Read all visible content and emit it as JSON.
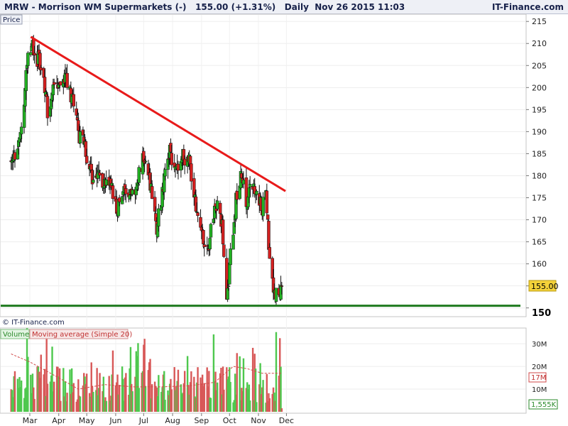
{
  "header": {
    "symbol": "MRW",
    "name": "Morrison WM Supermarkets (-)",
    "last_price": "155.00",
    "change": "(+1.31%)",
    "interval": "Daily",
    "datetime": "Nov 26 2015 11:03",
    "brand": "IT-Finance.com"
  },
  "price_panel": {
    "tab_label": "Price",
    "copyright": "© IT-Finance.com",
    "last_value_label": "155.00",
    "support_label": "150",
    "colors": {
      "up": "#22b022",
      "down": "#d42020",
      "trendline": "#e81a1a",
      "support": "#1e7a1e",
      "last_tag": "#f4d23a"
    }
  },
  "volume_panel": {
    "legend_volume": "Volume",
    "legend_ma": "Moving average (Simple 20)",
    "ma_value_label": "17M",
    "last_value_label": "1,555K",
    "y_ticks": [
      "10M",
      "20M",
      "30M"
    ],
    "y_tick_values": [
      10,
      20,
      30
    ]
  },
  "chart_data": {
    "type": "candlestick",
    "title": "",
    "x_month_labels": [
      "Mar",
      "Apr",
      "May",
      "Jun",
      "Jul",
      "Aug",
      "Sep",
      "Oct",
      "Nov",
      "Dec"
    ],
    "y_ticks": [
      150,
      155,
      160,
      165,
      170,
      175,
      180,
      185,
      190,
      195,
      200,
      205,
      210,
      215
    ],
    "ylim": [
      148.5,
      216
    ],
    "volume_ylim": [
      0,
      36
    ],
    "trendline": {
      "start": {
        "date": "2015-03-02",
        "price": 211.5
      },
      "end": {
        "date": "2015-11-30",
        "price": 176.5
      }
    },
    "support_level": 150.5,
    "series": [
      {
        "name": "Price",
        "anchors": [
          [
            "2015-02-09",
            183
          ],
          [
            "2015-02-16",
            185
          ],
          [
            "2015-02-23",
            196
          ],
          [
            "2015-02-26",
            206
          ],
          [
            "2015-03-02",
            210
          ],
          [
            "2015-03-06",
            208
          ],
          [
            "2015-03-13",
            205
          ],
          [
            "2015-03-20",
            195
          ],
          [
            "2015-03-27",
            200
          ],
          [
            "2015-04-02",
            201
          ],
          [
            "2015-04-09",
            202
          ],
          [
            "2015-04-16",
            197
          ],
          [
            "2015-04-22",
            190
          ],
          [
            "2015-04-29",
            186
          ],
          [
            "2015-05-06",
            180
          ],
          [
            "2015-05-13",
            180
          ],
          [
            "2015-05-20",
            178
          ],
          [
            "2015-05-27",
            177
          ],
          [
            "2015-06-03",
            172
          ],
          [
            "2015-06-10",
            178
          ],
          [
            "2015-06-17",
            177
          ],
          [
            "2015-06-24",
            178
          ],
          [
            "2015-07-01",
            185
          ],
          [
            "2015-07-08",
            178
          ],
          [
            "2015-07-15",
            168
          ],
          [
            "2015-07-22",
            178
          ],
          [
            "2015-07-29",
            185
          ],
          [
            "2015-08-05",
            182
          ],
          [
            "2015-08-12",
            184
          ],
          [
            "2015-08-19",
            183
          ],
          [
            "2015-08-26",
            173
          ],
          [
            "2015-09-02",
            166
          ],
          [
            "2015-09-09",
            165
          ],
          [
            "2015-09-16",
            175
          ],
          [
            "2015-09-23",
            168
          ],
          [
            "2015-09-28",
            151
          ],
          [
            "2015-10-02",
            163
          ],
          [
            "2015-10-09",
            176
          ],
          [
            "2015-10-14",
            180
          ],
          [
            "2015-10-19",
            174
          ],
          [
            "2015-10-26",
            178
          ],
          [
            "2015-11-02",
            174
          ],
          [
            "2015-11-05",
            172
          ],
          [
            "2015-11-09",
            177
          ],
          [
            "2015-11-13",
            160
          ],
          [
            "2015-11-18",
            153
          ],
          [
            "2015-11-23",
            154
          ],
          [
            "2015-11-26",
            155
          ]
        ]
      },
      {
        "name": "Volume",
        "ma_anchors": [
          [
            "2015-02-09",
            25.5
          ],
          [
            "2015-03-01",
            22
          ],
          [
            "2015-04-01",
            15
          ],
          [
            "2015-04-22",
            10
          ],
          [
            "2015-05-20",
            12
          ],
          [
            "2015-06-20",
            11
          ],
          [
            "2015-07-20",
            11
          ],
          [
            "2015-08-20",
            11.5
          ],
          [
            "2015-09-15",
            13
          ],
          [
            "2015-10-05",
            20
          ],
          [
            "2015-10-20",
            19
          ],
          [
            "2015-11-05",
            17
          ],
          [
            "2015-11-26",
            17
          ]
        ]
      }
    ]
  }
}
